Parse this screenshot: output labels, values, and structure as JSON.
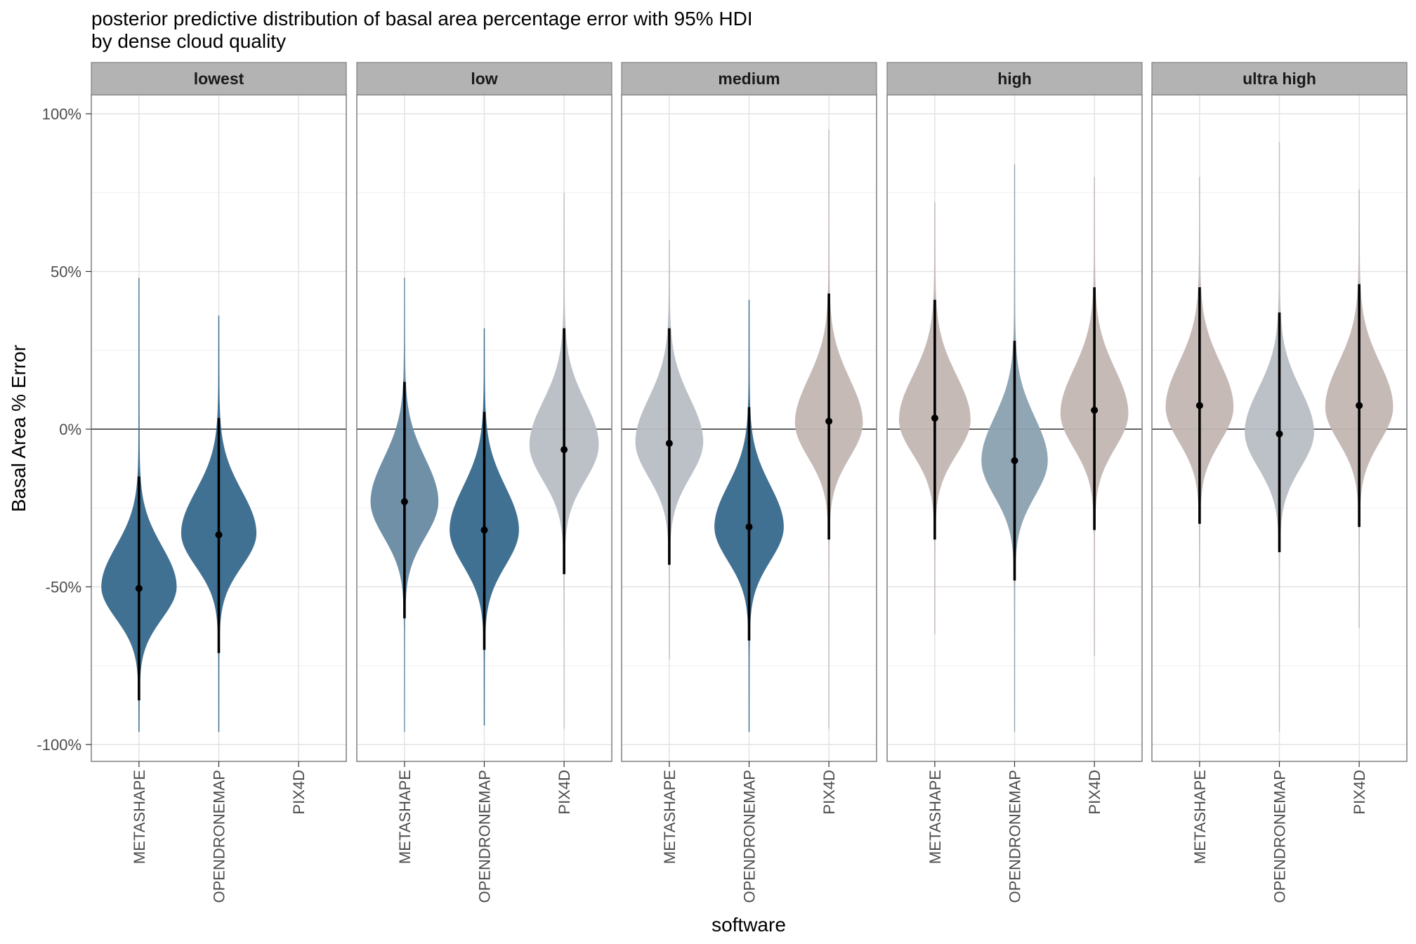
{
  "chart_data": {
    "type": "violin",
    "title": "posterior predictive distribution of basal area percentage error with 95% HDI",
    "subtitle": "by dense cloud quality",
    "xlabel": "software",
    "ylabel": "Basal Area % Error",
    "ylim": [
      -105,
      105
    ],
    "y_ticks": [
      100,
      50,
      0,
      -50,
      -100
    ],
    "y_tick_labels": [
      "100%",
      "50%",
      "0%",
      "-50%",
      "-100%"
    ],
    "reference_line": 0,
    "grid": true,
    "legend": "none",
    "categories": [
      "METASHAPE",
      "OPENDRONEMAP",
      "PIX4D"
    ],
    "facets": [
      {
        "label": "lowest",
        "series": [
          {
            "x": "METASHAPE",
            "median": -50.5,
            "hdi_low": -86,
            "hdi_high": -15,
            "mode": -50,
            "sd": 11.5,
            "skew": 0.12,
            "tail_low": -96,
            "tail_high": 48,
            "width": 1.0,
            "color": "#36698d"
          },
          {
            "x": "OPENDRONEMAP",
            "median": -33.5,
            "hdi_low": -71,
            "hdi_high": 3.5,
            "mode": -33,
            "sd": 12,
            "skew": 0.12,
            "tail_low": -96,
            "tail_high": 36,
            "width": 1.0,
            "color": "#36698d"
          }
        ]
      },
      {
        "label": "low",
        "series": [
          {
            "x": "METASHAPE",
            "median": -23,
            "hdi_low": -60,
            "hdi_high": 15,
            "mode": -23,
            "sd": 12.5,
            "skew": 0.1,
            "tail_low": -96,
            "tail_high": 48,
            "width": 0.9,
            "color": "#688aa3"
          },
          {
            "x": "OPENDRONEMAP",
            "median": -32,
            "hdi_low": -70,
            "hdi_high": 5.5,
            "mode": -32,
            "sd": 12.5,
            "skew": 0.1,
            "tail_low": -94,
            "tail_high": 32,
            "width": 0.92,
            "color": "#36698d"
          },
          {
            "x": "PIX4D",
            "median": -6.5,
            "hdi_low": -46,
            "hdi_high": 32,
            "mode": -5,
            "sd": 12.5,
            "skew": 0.1,
            "tail_low": -95,
            "tail_high": 75,
            "width": 0.92,
            "color": "#b8bec4"
          }
        ]
      },
      {
        "label": "medium",
        "series": [
          {
            "x": "METASHAPE",
            "median": -4.5,
            "hdi_low": -43,
            "hdi_high": 32,
            "mode": -4,
            "sd": 12.5,
            "skew": 0.1,
            "tail_low": -73,
            "tail_high": 60,
            "width": 0.9,
            "color": "#b8bec4"
          },
          {
            "x": "OPENDRONEMAP",
            "median": -31,
            "hdi_low": -67,
            "hdi_high": 7,
            "mode": -31,
            "sd": 12,
            "skew": 0.1,
            "tail_low": -96,
            "tail_high": 41,
            "width": 0.92,
            "color": "#36698d"
          },
          {
            "x": "PIX4D",
            "median": 2.5,
            "hdi_low": -35,
            "hdi_high": 43,
            "mode": 2,
            "sd": 12.5,
            "skew": 0.12,
            "tail_low": -95,
            "tail_high": 95,
            "width": 0.9,
            "color": "#c2b6b2"
          }
        ]
      },
      {
        "label": "high",
        "series": [
          {
            "x": "METASHAPE",
            "median": 3.5,
            "hdi_low": -35,
            "hdi_high": 41,
            "mode": 3,
            "sd": 12.5,
            "skew": 0.12,
            "tail_low": -65,
            "tail_high": 72,
            "width": 0.95,
            "color": "#c2b6b2"
          },
          {
            "x": "OPENDRONEMAP",
            "median": -10,
            "hdi_low": -48,
            "hdi_high": 28,
            "mode": -10,
            "sd": 12.5,
            "skew": 0.1,
            "tail_low": -96,
            "tail_high": 84,
            "width": 0.88,
            "color": "#8aa1b0"
          },
          {
            "x": "PIX4D",
            "median": 6,
            "hdi_low": -32,
            "hdi_high": 45,
            "mode": 5,
            "sd": 12.5,
            "skew": 0.12,
            "tail_low": -72,
            "tail_high": 80,
            "width": 0.9,
            "color": "#c2b6b2"
          }
        ]
      },
      {
        "label": "ultra high",
        "series": [
          {
            "x": "METASHAPE",
            "median": 7.5,
            "hdi_low": -30,
            "hdi_high": 45,
            "mode": 7,
            "sd": 12.5,
            "skew": 0.12,
            "tail_low": -50,
            "tail_high": 80,
            "width": 0.9,
            "color": "#c2b6b2"
          },
          {
            "x": "OPENDRONEMAP",
            "median": -1.5,
            "hdi_low": -39,
            "hdi_high": 37,
            "mode": -1,
            "sd": 12.5,
            "skew": 0.1,
            "tail_low": -96,
            "tail_high": 91,
            "width": 0.92,
            "color": "#b8bec4"
          },
          {
            "x": "PIX4D",
            "median": 7.5,
            "hdi_low": -31,
            "hdi_high": 46,
            "mode": 7,
            "sd": 12.5,
            "skew": 0.12,
            "tail_low": -63,
            "tail_high": 76,
            "width": 0.9,
            "color": "#c2b6b2"
          }
        ]
      }
    ]
  }
}
